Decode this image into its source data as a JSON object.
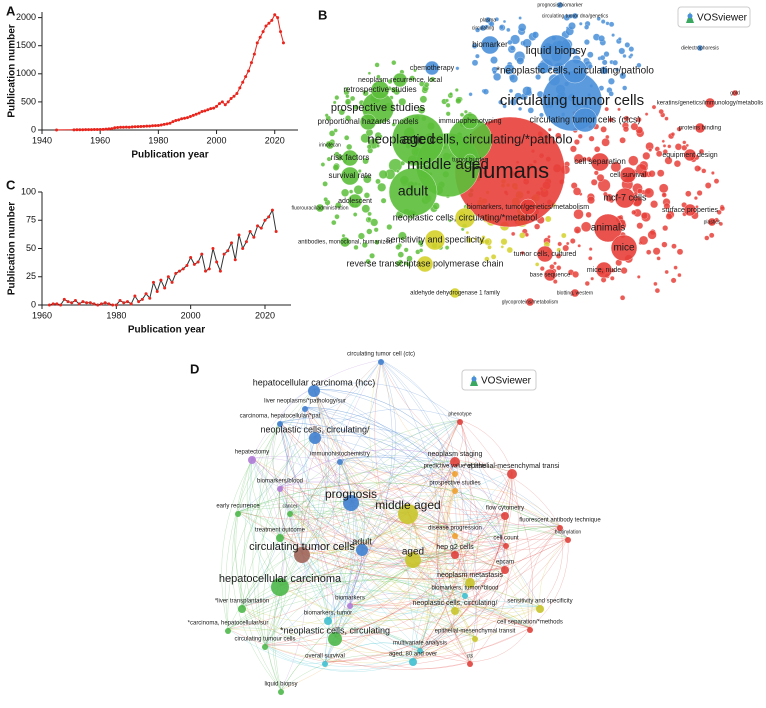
{
  "chart_data": [
    {
      "type": "line",
      "panel_label": "A",
      "xlabel": "Publication year",
      "ylabel": "Publication number",
      "x": [
        1945,
        1951,
        1952,
        1953,
        1954,
        1955,
        1956,
        1957,
        1958,
        1959,
        1960,
        1961,
        1962,
        1963,
        1964,
        1965,
        1966,
        1967,
        1968,
        1969,
        1970,
        1971,
        1972,
        1973,
        1974,
        1975,
        1976,
        1977,
        1978,
        1979,
        1980,
        1981,
        1982,
        1983,
        1984,
        1985,
        1986,
        1987,
        1988,
        1989,
        1990,
        1991,
        1992,
        1993,
        1994,
        1995,
        1996,
        1997,
        1998,
        1999,
        2000,
        2001,
        2002,
        2003,
        2004,
        2005,
        2006,
        2007,
        2008,
        2009,
        2010,
        2011,
        2012,
        2013,
        2014,
        2015,
        2016,
        2017,
        2018,
        2019,
        2020,
        2021,
        2022,
        2023
      ],
      "series": [
        {
          "color": "#e8241c",
          "marker_color": "#e8241c",
          "values": [
            1,
            3,
            4,
            5,
            5,
            6,
            6,
            7,
            8,
            8,
            10,
            12,
            15,
            20,
            25,
            40,
            45,
            50,
            48,
            52,
            50,
            55,
            58,
            60,
            62,
            65,
            68,
            70,
            75,
            78,
            80,
            90,
            100,
            110,
            120,
            150,
            170,
            180,
            200,
            210,
            220,
            240,
            260,
            280,
            300,
            330,
            340,
            360,
            380,
            390,
            420,
            470,
            500,
            450,
            500,
            560,
            600,
            650,
            750,
            850,
            950,
            1050,
            1200,
            1350,
            1550,
            1650,
            1750,
            1850,
            1900,
            1950,
            2050,
            2000,
            1750,
            1550
          ]
        }
      ],
      "xlim": [
        1940,
        2028
      ],
      "xticks": [
        1940,
        1960,
        1980,
        2000,
        2020
      ],
      "ylim": [
        0,
        2100
      ],
      "yticks": [
        0,
        500,
        1000,
        1500,
        2000
      ]
    },
    {
      "type": "line",
      "panel_label": "C",
      "xlabel": "Publication year",
      "ylabel": "Publication number",
      "x": [
        1962,
        1963,
        1964,
        1965,
        1966,
        1967,
        1968,
        1969,
        1970,
        1971,
        1972,
        1973,
        1974,
        1975,
        1976,
        1977,
        1978,
        1979,
        1980,
        1981,
        1982,
        1983,
        1984,
        1985,
        1986,
        1987,
        1988,
        1989,
        1990,
        1991,
        1992,
        1993,
        1994,
        1995,
        1996,
        1997,
        1998,
        1999,
        2000,
        2001,
        2002,
        2003,
        2004,
        2005,
        2006,
        2007,
        2008,
        2009,
        2010,
        2011,
        2012,
        2013,
        2014,
        2015,
        2016,
        2017,
        2018,
        2019,
        2020,
        2021,
        2022,
        2023
      ],
      "series": [
        {
          "color": "#333333",
          "marker_color": "#e8241c",
          "values": [
            0,
            1,
            1,
            0,
            5,
            3,
            2,
            4,
            1,
            3,
            2,
            2,
            1,
            0,
            1,
            2,
            1,
            0,
            0,
            4,
            2,
            3,
            1,
            8,
            3,
            5,
            10,
            6,
            20,
            12,
            22,
            15,
            25,
            20,
            28,
            30,
            32,
            35,
            42,
            36,
            38,
            45,
            30,
            32,
            50,
            38,
            30,
            45,
            48,
            55,
            40,
            62,
            50,
            56,
            65,
            60,
            70,
            68,
            75,
            78,
            84,
            65
          ]
        }
      ],
      "xlim": [
        1960,
        2027
      ],
      "xticks": [
        1960,
        1980,
        2000,
        2020
      ],
      "ylim": [
        0,
        100
      ],
      "yticks": [
        0,
        25,
        50,
        75,
        100
      ]
    }
  ],
  "networks": [
    {
      "panel_label": "B",
      "watermark": "VOSviewer",
      "nodes": [
        {
          "label": "humans",
          "color": "#e8403a"
        },
        {
          "label": "circulating tumor cells",
          "color": "#4a90d9"
        },
        {
          "label": "neoplastic cells, circulating/*patholo",
          "color": "#5cbf3a"
        },
        {
          "label": "middle aged",
          "color": "#5cbf3a"
        },
        {
          "label": "aged",
          "color": "#5cbf3a"
        },
        {
          "label": "adult",
          "color": "#5cbf3a"
        },
        {
          "label": "prospective studies",
          "color": "#5cbf3a"
        },
        {
          "label": "liquid biopsy",
          "color": "#4a90d9"
        },
        {
          "label": "*neoplastic cells, circulating/patholo",
          "color": "#4a90d9"
        },
        {
          "label": "circulating tumor cells (ctcs)",
          "color": "#4a90d9"
        },
        {
          "label": "proportional hazards models",
          "color": "#5cbf3a"
        },
        {
          "label": "retrospective studies",
          "color": "#5cbf3a"
        },
        {
          "label": "neoplasm recurrence, local",
          "color": "#5cbf3a"
        },
        {
          "label": "chemotherapy",
          "color": "#4a90d9"
        },
        {
          "label": "biomarker",
          "color": "#4a90d9"
        },
        {
          "label": "immunophenotyping",
          "color": "#5cbf3a"
        },
        {
          "label": "risk factors",
          "color": "#5cbf3a"
        },
        {
          "label": "survival rate",
          "color": "#5cbf3a"
        },
        {
          "label": "adolescent",
          "color": "#5cbf3a"
        },
        {
          "label": "tumor burden",
          "color": "#5cbf3a"
        },
        {
          "label": "cell separation",
          "color": "#e8403a"
        },
        {
          "label": "cell survival",
          "color": "#e8403a"
        },
        {
          "label": "mcf-7 cells",
          "color": "#e8403a"
        },
        {
          "label": "animals",
          "color": "#e8403a"
        },
        {
          "label": "mice",
          "color": "#e8403a"
        },
        {
          "label": "mice, nude",
          "color": "#e8403a"
        },
        {
          "label": "sensitivity and specificity",
          "color": "#d4d12a"
        },
        {
          "label": "reverse transcriptase polymerase chain",
          "color": "#d4d12a"
        },
        {
          "label": "neoplastic cells, circulating/*metabol",
          "color": "#d4d12a"
        },
        {
          "label": "biomarkers, tumor/genetics/metabolism",
          "color": "#e8403a"
        },
        {
          "label": "tumor cells, cultured",
          "color": "#e8403a"
        },
        {
          "label": "equipment design",
          "color": "#e8403a"
        },
        {
          "label": "surface properties",
          "color": "#e8403a"
        },
        {
          "label": "proteins binding",
          "color": "#e8403a"
        },
        {
          "label": "keratins/genetics/immunology/metabolis",
          "color": "#e8403a"
        },
        {
          "label": "base sequence",
          "color": "#e8403a"
        },
        {
          "label": "aldehyde dehydrogenase 1 family",
          "color": "#d4d12a"
        },
        {
          "label": "glycoproteins/metabolism",
          "color": "#e8403a"
        },
        {
          "label": "blotting, western",
          "color": "#e8403a"
        },
        {
          "label": "antibodies, monoclonal, humanized",
          "color": "#5cbf3a"
        },
        {
          "label": "irinotecan",
          "color": "#5cbf3a"
        },
        {
          "label": "fluorouracil/administration",
          "color": "#5cbf3a"
        },
        {
          "label": "prognosis/biomarker",
          "color": "#4a90d9"
        },
        {
          "label": "circulating tumor dna/genetics",
          "color": "#4a90d9"
        },
        {
          "label": "circulating",
          "color": "#4a90d9"
        },
        {
          "label": "plasma",
          "color": "#4a90d9"
        },
        {
          "label": "dielectrophoresis",
          "color": "#4a90d9"
        },
        {
          "label": "gold",
          "color": "#e8403a"
        },
        {
          "label": "plastics",
          "color": "#e8403a"
        }
      ]
    },
    {
      "panel_label": "D",
      "watermark": "VOSviewer",
      "nodes": [
        {
          "label": "circulating tumor cell (ctc)",
          "color": "#3f7fcf"
        },
        {
          "label": "hepatocellular carcinoma (hcc)",
          "color": "#3f7fcf"
        },
        {
          "label": "liver neoplasms/*pathology/sur",
          "color": "#3f7fcf"
        },
        {
          "label": "carcinoma, hepatocellular/*pat",
          "color": "#3f7fcf"
        },
        {
          "label": "neoplastic cells, circulating/",
          "color": "#3f7fcf"
        },
        {
          "label": "hepatectomy",
          "color": "#b07ad8"
        },
        {
          "label": "immunohistochemistry",
          "color": "#3f7fcf"
        },
        {
          "label": "biomarkers/blood",
          "color": "#b07ad8"
        },
        {
          "label": "prognosis",
          "color": "#3f7fcf"
        },
        {
          "label": "middle aged",
          "color": "#c9c42a"
        },
        {
          "label": "early recurrence",
          "color": "#4cb84a"
        },
        {
          "label": "cancer",
          "color": "#4cb84a"
        },
        {
          "label": "treatment outcome",
          "color": "#4cb84a"
        },
        {
          "label": "circulating tumor cells",
          "color": "#a0655a"
        },
        {
          "label": "adult",
          "color": "#3f7fcf"
        },
        {
          "label": "aged",
          "color": "#c9c42a"
        },
        {
          "label": "hepatocellular carcinoma",
          "color": "#4cb84a"
        },
        {
          "label": "*liver transplantation",
          "color": "#4cb84a"
        },
        {
          "label": "*carcinoma, hepatocellular/sur",
          "color": "#4cb84a"
        },
        {
          "label": "circulating tumour cells",
          "color": "#4cb84a"
        },
        {
          "label": "liquid biopsy",
          "color": "#4cb84a"
        },
        {
          "label": "biomarkers",
          "color": "#b07ad8"
        },
        {
          "label": "biomarkers, tumor",
          "color": "#3fc0d0"
        },
        {
          "label": "*neoplastic cells, circulating",
          "color": "#4cb84a"
        },
        {
          "label": "overall survival",
          "color": "#3fc0d0"
        },
        {
          "label": "aged, 80 and over",
          "color": "#3fc0d0"
        },
        {
          "label": "multivariate analysis",
          "color": "#3fc0d0"
        },
        {
          "label": "epithelial-mesenchymal transit",
          "color": "#c9c42a"
        },
        {
          "label": "neoplastic cells, circulating/",
          "color": "#c9c42a"
        },
        {
          "label": "biomarkers, tumor/*blood",
          "color": "#3fc0d0"
        },
        {
          "label": "neoplasm metastasis",
          "color": "#c9c42a"
        },
        {
          "label": "hep g2 cells",
          "color": "#e0413c"
        },
        {
          "label": "disease progression",
          "color": "#f0a030"
        },
        {
          "label": "prospective studies",
          "color": "#f0a030"
        },
        {
          "label": "predictive value of tests",
          "color": "#f0a030"
        },
        {
          "label": "neoplasm staging",
          "color": "#e0413c"
        },
        {
          "label": "*epithelial-mesenchymal transi",
          "color": "#e0413c"
        },
        {
          "label": "phenotype",
          "color": "#e0413c"
        },
        {
          "label": "flow cytometry",
          "color": "#e0413c"
        },
        {
          "label": "fluorescent antibody technique",
          "color": "#e0413c"
        },
        {
          "label": "biotinylation",
          "color": "#e0413c"
        },
        {
          "label": "cell count",
          "color": "#e0413c"
        },
        {
          "label": "epcam",
          "color": "#e0413c"
        },
        {
          "label": "sensitivity and specificity",
          "color": "#c9c42a"
        },
        {
          "label": "cell separation/*methods",
          "color": "#e0413c"
        },
        {
          "label": "cts",
          "color": "#e0413c"
        }
      ]
    }
  ]
}
